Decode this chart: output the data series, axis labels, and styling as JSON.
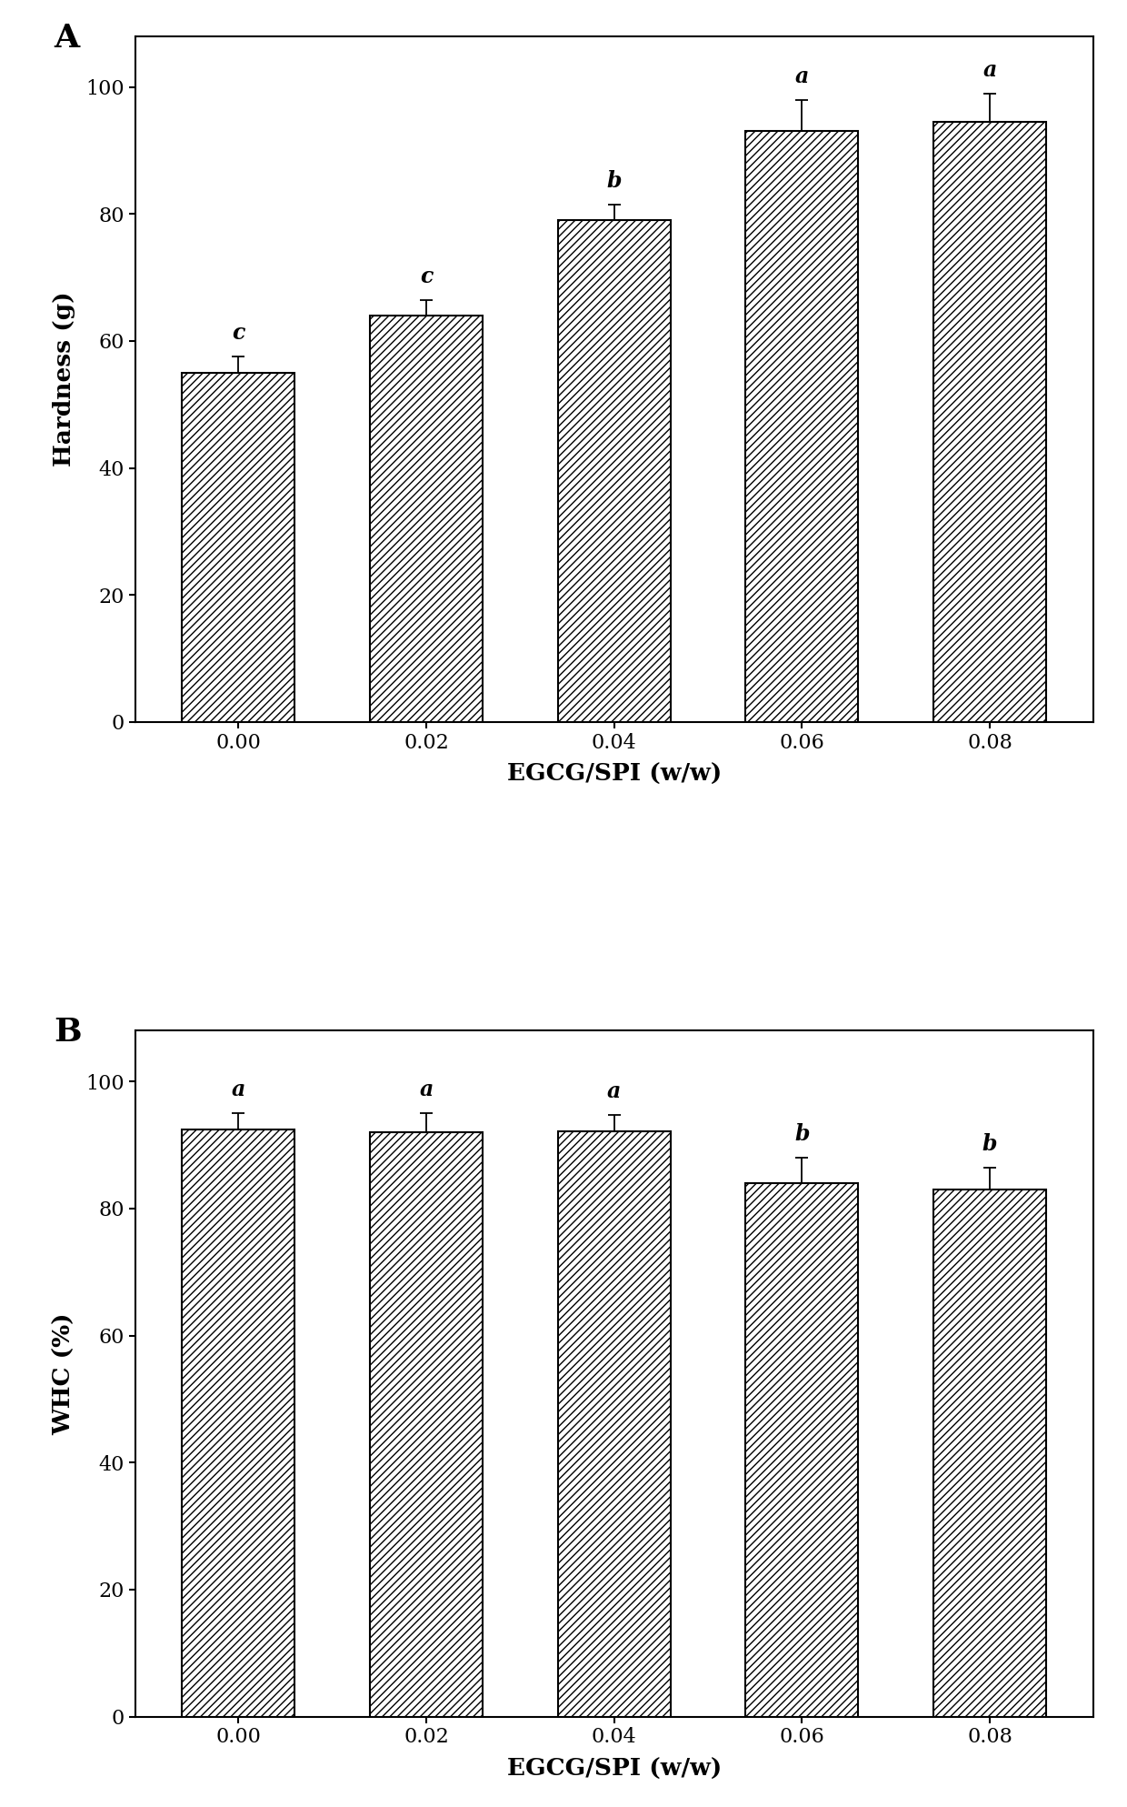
{
  "panel_A": {
    "categories": [
      "0.00",
      "0.02",
      "0.04",
      "0.06",
      "0.08"
    ],
    "values": [
      55.0,
      64.0,
      79.0,
      93.0,
      94.5
    ],
    "errors": [
      2.5,
      2.5,
      2.5,
      5.0,
      4.5
    ],
    "letters": [
      "c",
      "c",
      "b",
      "a",
      "a"
    ],
    "ylabel": "Hardness (g)",
    "xlabel": "EGCG/SPI (w/w)",
    "panel_label": "A",
    "ylim": [
      0,
      108
    ],
    "yticks": [
      0,
      20,
      40,
      60,
      80,
      100
    ]
  },
  "panel_B": {
    "categories": [
      "0.00",
      "0.02",
      "0.04",
      "0.06",
      "0.08"
    ],
    "values": [
      92.5,
      92.0,
      92.2,
      84.0,
      83.0
    ],
    "errors": [
      2.5,
      3.0,
      2.5,
      4.0,
      3.5
    ],
    "letters": [
      "a",
      "a",
      "a",
      "b",
      "b"
    ],
    "ylabel": "WHC (%)",
    "xlabel": "EGCG/SPI (w/w)",
    "panel_label": "B",
    "ylim": [
      0,
      108
    ],
    "yticks": [
      0,
      20,
      40,
      60,
      80,
      100
    ]
  },
  "bar_color": "#ffffff",
  "bar_edgecolor": "#000000",
  "hatch_pattern": "////",
  "bar_width": 0.6,
  "letter_fontsize": 17,
  "axis_label_fontsize": 19,
  "tick_fontsize": 16,
  "panel_label_fontsize": 26,
  "figure_facecolor": "#ffffff"
}
